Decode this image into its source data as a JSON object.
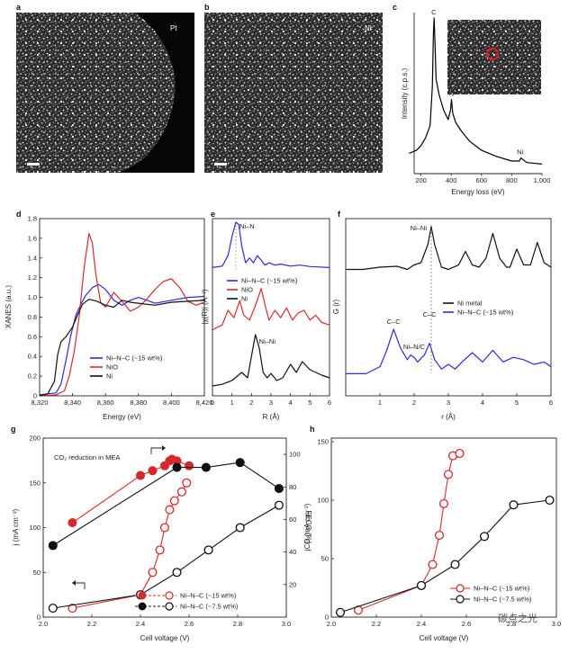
{
  "panel_labels": [
    "a",
    "b",
    "c",
    "d",
    "e",
    "f",
    "g",
    "h"
  ],
  "images": {
    "a": {
      "label": "Pt"
    },
    "b": {
      "label": "Ni"
    }
  },
  "watermark": "碳点之光",
  "chart_data": [
    {
      "id": "c",
      "type": "line",
      "xlabel": "Energy loss (eV)",
      "ylabel": "Intensity (c.p.s.)",
      "xlim": [
        0,
        1000
      ],
      "xticks": [
        "200",
        "400",
        "600",
        "800",
        "1,000"
      ],
      "annotations": [
        "C",
        "N",
        "Ni"
      ],
      "series": [
        {
          "color": "#000000",
          "x": [
            120,
            170,
            200,
            230,
            260,
            275,
            282,
            287,
            292,
            300,
            320,
            350,
            380,
            395,
            402,
            410,
            430,
            470,
            520,
            600,
            700,
            800,
            850,
            860,
            900,
            1000
          ],
          "y": [
            0.12,
            0.14,
            0.17,
            0.22,
            0.3,
            0.55,
            0.9,
            1.0,
            0.85,
            0.6,
            0.5,
            0.4,
            0.34,
            0.4,
            0.47,
            0.38,
            0.32,
            0.26,
            0.2,
            0.14,
            0.1,
            0.07,
            0.07,
            0.09,
            0.06,
            0.05
          ]
        }
      ]
    },
    {
      "id": "d",
      "type": "line",
      "xlabel": "Energy (eV)",
      "ylabel": "XANES (a.u.)",
      "xlim": [
        8320,
        8420
      ],
      "ylim": [
        0,
        1.8
      ],
      "xticks": [
        "8,320",
        "8,340",
        "8,360",
        "8,380",
        "8,400",
        "8,420"
      ],
      "yticks": [
        "0",
        "0.2",
        "0.4",
        "0.6",
        "0.8",
        "1.0",
        "1.2",
        "1.4",
        "1.6",
        "1.8"
      ],
      "legend_position": "lower-center",
      "series": [
        {
          "name": "Ni–N–C (~15 wt%)",
          "color": "#2b2bd6",
          "x": [
            8320,
            8330,
            8333,
            8336,
            8339,
            8342,
            8345,
            8348,
            8352,
            8356,
            8360,
            8365,
            8370,
            8375,
            8380,
            8390,
            8400,
            8410,
            8420
          ],
          "y": [
            0.01,
            0.03,
            0.12,
            0.36,
            0.62,
            0.82,
            0.93,
            1.02,
            1.1,
            1.13,
            1.08,
            0.97,
            0.92,
            0.97,
            1.0,
            0.94,
            0.97,
            1.0,
            1.01
          ]
        },
        {
          "name": "NiO",
          "color": "#d62a2a",
          "x": [
            8320,
            8330,
            8335,
            8338,
            8341,
            8344,
            8347,
            8350,
            8352,
            8354,
            8357,
            8360,
            8365,
            8370,
            8375,
            8380,
            8385,
            8390,
            8395,
            8400,
            8405,
            8410,
            8415,
            8420
          ],
          "y": [
            0.0,
            0.01,
            0.05,
            0.2,
            0.45,
            0.8,
            1.3,
            1.65,
            1.55,
            1.25,
            0.95,
            0.9,
            1.05,
            0.96,
            0.86,
            0.9,
            0.98,
            1.08,
            1.16,
            1.19,
            1.1,
            0.96,
            0.92,
            0.95
          ]
        },
        {
          "name": "Ni",
          "color": "#111111",
          "x": [
            8320,
            8325,
            8329,
            8331,
            8333,
            8336,
            8340,
            8343,
            8346,
            8350,
            8355,
            8360,
            8365,
            8370,
            8375,
            8380,
            8390,
            8400,
            8410,
            8420
          ],
          "y": [
            0.0,
            0.02,
            0.15,
            0.42,
            0.55,
            0.6,
            0.7,
            0.82,
            0.93,
            0.98,
            0.96,
            0.92,
            0.9,
            0.97,
            0.95,
            0.94,
            0.92,
            0.95,
            0.96,
            0.97
          ]
        }
      ]
    },
    {
      "id": "e",
      "type": "line",
      "xlabel": "R (Å)",
      "ylabel": "|χ(R)| (Å⁻³)",
      "xlim": [
        0,
        6
      ],
      "xticks": [
        "0",
        "1",
        "2",
        "3",
        "4",
        "5",
        "6"
      ],
      "annotations": [
        "Ni–N",
        "Ni–Ni"
      ],
      "legend_position": "center",
      "series": [
        {
          "name": "Ni–N–C (~15 wt%)",
          "color": "#2b2bd6",
          "x": [
            0,
            0.5,
            0.8,
            1.0,
            1.2,
            1.35,
            1.5,
            1.7,
            1.9,
            2.1,
            2.3,
            2.5,
            2.7,
            2.9,
            3.2,
            3.5,
            4.0,
            4.5,
            5.0,
            5.5,
            6.0
          ],
          "y": [
            0.05,
            0.08,
            0.3,
            0.7,
            1.0,
            0.95,
            0.5,
            0.15,
            0.25,
            0.15,
            0.3,
            0.2,
            0.1,
            0.15,
            0.1,
            0.12,
            0.08,
            0.1,
            0.07,
            0.06,
            0.05
          ]
        },
        {
          "name": "NiO",
          "color": "#d62a2a",
          "x": [
            0,
            0.5,
            0.8,
            1.1,
            1.4,
            1.6,
            1.9,
            2.2,
            2.5,
            2.7,
            2.9,
            3.2,
            3.5,
            3.8,
            4.1,
            4.4,
            4.7,
            5.0,
            5.3,
            5.6,
            6.0
          ],
          "y": [
            0.1,
            0.2,
            0.5,
            0.35,
            0.7,
            0.4,
            0.3,
            0.6,
            0.95,
            0.6,
            0.3,
            0.5,
            0.35,
            0.55,
            0.3,
            0.45,
            0.5,
            0.3,
            0.4,
            0.25,
            0.2
          ]
        },
        {
          "name": "Ni",
          "color": "#111111",
          "x": [
            0,
            0.5,
            1.0,
            1.5,
            1.8,
            2.0,
            2.2,
            2.4,
            2.6,
            2.8,
            3.0,
            3.3,
            3.6,
            4.0,
            4.3,
            4.6,
            5.0,
            5.3,
            5.6,
            6.0
          ],
          "y": [
            0.05,
            0.08,
            0.15,
            0.3,
            0.2,
            0.6,
            1.0,
            0.75,
            0.3,
            0.2,
            0.28,
            0.15,
            0.2,
            0.45,
            0.3,
            0.5,
            0.35,
            0.3,
            0.25,
            0.2
          ]
        }
      ]
    },
    {
      "id": "f",
      "type": "line",
      "xlabel": "r (Å)",
      "ylabel": "G (r)",
      "xlim": [
        0,
        6
      ],
      "xticks": [
        "1",
        "2",
        "3",
        "4",
        "5",
        "6"
      ],
      "annotations": [
        "Ni–Ni",
        "C–C",
        "C–C",
        "Ni–N/C"
      ],
      "legend_position": "center-right",
      "series": [
        {
          "name": "Ni metal",
          "color": "#111111",
          "x": [
            0,
            0.5,
            1.0,
            1.5,
            1.8,
            2.0,
            2.2,
            2.4,
            2.5,
            2.6,
            2.8,
            3.0,
            3.3,
            3.5,
            3.7,
            3.9,
            4.1,
            4.3,
            4.5,
            4.7,
            4.8,
            5.0,
            5.2,
            5.4,
            5.6,
            5.8,
            6.0
          ],
          "y": [
            0.05,
            0.05,
            0.1,
            0.12,
            0.05,
            0.15,
            0.2,
            0.6,
            1.0,
            0.6,
            0.1,
            0.05,
            0.15,
            0.45,
            0.15,
            0.1,
            0.3,
            0.85,
            0.3,
            0.1,
            0.1,
            0.5,
            0.15,
            0.15,
            0.65,
            0.2,
            0.1
          ]
        },
        {
          "name": "Ni–N–C (~15 wt%)",
          "color": "#2b2bd6",
          "x": [
            0,
            0.6,
            1.0,
            1.2,
            1.4,
            1.6,
            1.8,
            1.9,
            2.0,
            2.1,
            2.3,
            2.45,
            2.6,
            2.8,
            3.0,
            3.2,
            3.4,
            3.7,
            4.0,
            4.3,
            4.6,
            4.9,
            5.2,
            5.5,
            5.8,
            6.0
          ],
          "y": [
            0.05,
            0.05,
            0.2,
            0.55,
            1.0,
            0.6,
            0.35,
            0.45,
            0.4,
            0.3,
            0.45,
            0.7,
            0.35,
            0.15,
            0.25,
            0.15,
            0.3,
            0.5,
            0.3,
            0.55,
            0.3,
            0.4,
            0.35,
            0.25,
            0.3,
            0.2
          ]
        }
      ]
    },
    {
      "id": "g",
      "type": "scatter",
      "xlabel": "Cell voltage (V)",
      "ylabel": "j (mA cm⁻²)",
      "y2label": "FECO (%)",
      "xlim": [
        2.0,
        3.0
      ],
      "ylim": [
        0,
        200
      ],
      "y2lim": [
        0,
        110
      ],
      "xticks": [
        "2.0",
        "2.2",
        "2.4",
        "2.6",
        "2.8",
        "3.0"
      ],
      "yticks": [
        "0",
        "50",
        "100",
        "150",
        "200"
      ],
      "y2ticks": [
        "20",
        "40",
        "60",
        "80",
        "100"
      ],
      "inset_text": "CO₂ reduction in MEA",
      "legend_position": "bottom-center",
      "series": [
        {
          "name": "Ni–N–C (~15 wt%)",
          "color": "#d62a2a",
          "axis": "left",
          "marker": "open-circle",
          "x": [
            2.12,
            2.4,
            2.45,
            2.48,
            2.5,
            2.52,
            2.54,
            2.57,
            2.59
          ],
          "y": [
            10,
            25,
            50,
            75,
            100,
            120,
            130,
            140,
            150
          ]
        },
        {
          "name": "Ni–N–C (~15 wt%)",
          "color": "#d62a2a",
          "axis": "right",
          "marker": "filled-circle",
          "x": [
            2.12,
            2.4,
            2.45,
            2.5,
            2.52,
            2.53,
            2.55,
            2.6
          ],
          "y": [
            58,
            87,
            90,
            93,
            96,
            97,
            96,
            93
          ]
        },
        {
          "name": "Ni–N–C (~7.5 wt%)",
          "color": "#111111",
          "axis": "left",
          "marker": "open-circle",
          "x": [
            2.04,
            2.4,
            2.55,
            2.68,
            2.81,
            2.97
          ],
          "y": [
            10,
            25,
            50,
            75,
            100,
            125
          ]
        },
        {
          "name": "Ni–N–C (~7.5 wt%)",
          "color": "#111111",
          "axis": "right",
          "marker": "filled-circle",
          "x": [
            2.04,
            2.55,
            2.67,
            2.81,
            2.97
          ],
          "y": [
            44,
            92,
            92,
            95,
            79
          ]
        }
      ]
    },
    {
      "id": "h",
      "type": "scatter",
      "xlabel": "Cell voltage (V)",
      "ylabel": "jCO (mA cm⁻²)",
      "xlim": [
        2.0,
        3.0
      ],
      "ylim": [
        0,
        150
      ],
      "xticks": [
        "2.0",
        "2.2",
        "2.4",
        "2.6",
        "2.8",
        "3.0"
      ],
      "yticks": [
        "0",
        "50",
        "100",
        "150"
      ],
      "legend_position": "lower-right",
      "series": [
        {
          "name": "Ni–N–C (~15 wt%)",
          "color": "#d62a2a",
          "marker": "open-circle",
          "x": [
            2.12,
            2.4,
            2.45,
            2.48,
            2.5,
            2.52,
            2.54,
            2.57
          ],
          "y": [
            6,
            27,
            45,
            70,
            97,
            122,
            138,
            140
          ]
        },
        {
          "name": "Ni–N–C (~7.5 wt%)",
          "color": "#111111",
          "marker": "open-circle",
          "x": [
            2.04,
            2.4,
            2.55,
            2.68,
            2.81,
            2.97
          ],
          "y": [
            4,
            27,
            45,
            69,
            96,
            100
          ]
        }
      ]
    }
  ]
}
